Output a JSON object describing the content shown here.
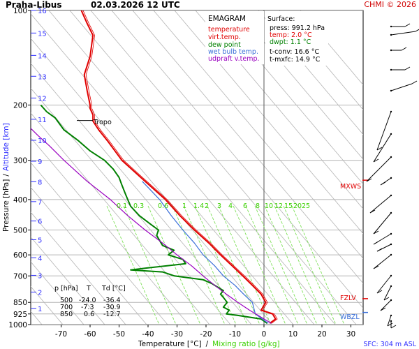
{
  "header": {
    "station": "Praha-Libus",
    "datetime": "02.03.2026 12 UTC",
    "credit": "CHMI © 2026"
  },
  "legend": {
    "title": "EMAGRAM",
    "entries": [
      {
        "label": "temperature",
        "color": "#e00000"
      },
      {
        "label": "virt.temp.",
        "color": "#e00000"
      },
      {
        "label": "dew point",
        "color": "#008000"
      },
      {
        "label": "wet bulb temp.",
        "color": "#3a6fd8"
      },
      {
        "label": "udpraft v.temp.",
        "color": "#9a00c0"
      }
    ]
  },
  "surface": {
    "title": "Surface:",
    "press": "press: 991.2 hPa",
    "temp": "temp: 2.0 °C",
    "dwpt": "dwpt: 1.1 °C",
    "tconv": "t-conv: 16.6 °C",
    "tmxfc": "t-mxfc: 14.9 °C"
  },
  "table": {
    "headers": [
      "p [hPa]",
      "T",
      "Td [°C]"
    ],
    "rows": [
      [
        "500",
        "-24.0",
        "-36.4"
      ],
      [
        "700",
        "-7.3",
        "-30.9"
      ],
      [
        "850",
        "0.6",
        "-12.7"
      ]
    ]
  },
  "axis_labels": {
    "y_left": "Pressure [hPa]",
    "y_sep": "/",
    "y_right": "Altitude [km]",
    "x_main": "Temperature [°C]",
    "x_sep": "/",
    "x_mix": "Mixing ratio [g/kg]",
    "sfc": "SFC: 304 m ASL"
  },
  "markers": {
    "tropo": "Tropo",
    "mxws": "MXWS",
    "fzlv": "FZLV",
    "wbzl": "WBZL"
  },
  "colors": {
    "temperature": "#e00000",
    "dewpoint": "#008000",
    "wetbulb": "#3a6fd8",
    "parcel": "#9a00c0",
    "mixing": "#7fe05a",
    "adiabat": "#b4b4b4",
    "grid": "#b4b4b4"
  },
  "chart_data": {
    "type": "line",
    "x_axis": {
      "label": "Temperature [°C]",
      "range": [
        -80,
        35
      ],
      "ticks": [
        -70,
        -60,
        -50,
        -40,
        -30,
        -20,
        -10,
        0,
        10,
        20,
        30
      ]
    },
    "y_axis": {
      "label": "Pressure [hPa]",
      "scale": "log",
      "range": [
        1000,
        100
      ],
      "ticks": [
        100,
        200,
        300,
        400,
        500,
        600,
        700,
        850,
        925,
        1000
      ]
    },
    "altitude_ticks_km": [
      1,
      2,
      3,
      4,
      5,
      6,
      7,
      8,
      9,
      10,
      11,
      12,
      13,
      14,
      15,
      16
    ],
    "altitude_tick_pressures": [
      888,
      788,
      697,
      613,
      537,
      468,
      406,
      351,
      302,
      259,
      222,
      190,
      162,
      139,
      118,
      100
    ],
    "mixing_ratio_labels": [
      "0.1",
      "0.3",
      "0.6",
      "1",
      "1.4",
      "2",
      "3",
      "4",
      "6",
      "8",
      "10",
      "12",
      "15",
      "20",
      "25"
    ],
    "mixing_ratio_values": [
      0.1,
      0.3,
      0.6,
      1,
      1.4,
      2,
      3,
      4,
      6,
      8,
      10,
      12,
      15,
      20,
      25
    ],
    "series": [
      {
        "name": "temperature",
        "p": [
          991,
          960,
          925,
          900,
          850,
          800,
          750,
          700,
          650,
          600,
          550,
          500,
          450,
          400,
          350,
          300,
          260,
          240,
          225,
          215,
          205,
          200,
          180,
          160,
          140,
          120,
          110,
          100
        ],
        "t": [
          2,
          4,
          3,
          -1,
          0.6,
          -1,
          -4,
          -7.3,
          -11,
          -15,
          -19,
          -24,
          -29,
          -34,
          -41,
          -49,
          -54,
          -57,
          -59,
          -59,
          -60,
          -60,
          -61,
          -62,
          -60,
          -59,
          -61,
          -63
        ]
      },
      {
        "name": "dew point",
        "p": [
          991,
          960,
          935,
          925,
          900,
          880,
          850,
          820,
          800,
          780,
          760,
          740,
          720,
          700,
          680,
          670,
          660,
          640,
          620,
          600,
          580,
          560,
          540,
          520,
          500,
          480,
          450,
          420,
          400,
          380,
          360,
          340,
          320,
          300,
          280,
          260,
          240,
          220,
          210,
          200
        ],
        "t": [
          1.1,
          -1,
          -9,
          -13,
          -12,
          -14,
          -12.7,
          -14,
          -15,
          -14,
          -16,
          -18,
          -21,
          -30.9,
          -35,
          -46,
          -40,
          -27,
          -28,
          -33,
          -31,
          -35,
          -36,
          -37,
          -36.4,
          -39,
          -43,
          -46,
          -47,
          -48,
          -49,
          -50,
          -52,
          -55,
          -60,
          -64,
          -69,
          -72,
          -75,
          -77
        ]
      },
      {
        "name": "wet bulb temp.",
        "p": [
          991,
          925,
          850,
          800,
          750,
          700,
          650,
          600,
          550,
          500,
          450,
          400,
          350
        ],
        "t": [
          1.5,
          -3,
          -4,
          -7,
          -10,
          -14,
          -17,
          -21,
          -24,
          -28,
          -32,
          -36,
          -42
        ]
      },
      {
        "name": "udpraft v.temp.",
        "p": [
          991,
          900,
          850,
          800,
          750,
          700,
          650,
          600,
          550,
          500,
          450,
          400,
          350,
          300,
          270,
          250,
          225
        ],
        "t": [
          2.5,
          -5,
          -9,
          -13,
          -17,
          -21,
          -25,
          -30,
          -35,
          -41,
          -47,
          -53,
          -61,
          -69,
          -74,
          -78,
          -83
        ]
      }
    ],
    "annotations": [
      {
        "label": "Tropo",
        "p": 224,
        "t": -57
      },
      {
        "label": "MXWS",
        "p": 347
      },
      {
        "label": "FZLV",
        "p": 827
      },
      {
        "label": "WBZL",
        "p": 915
      }
    ]
  }
}
